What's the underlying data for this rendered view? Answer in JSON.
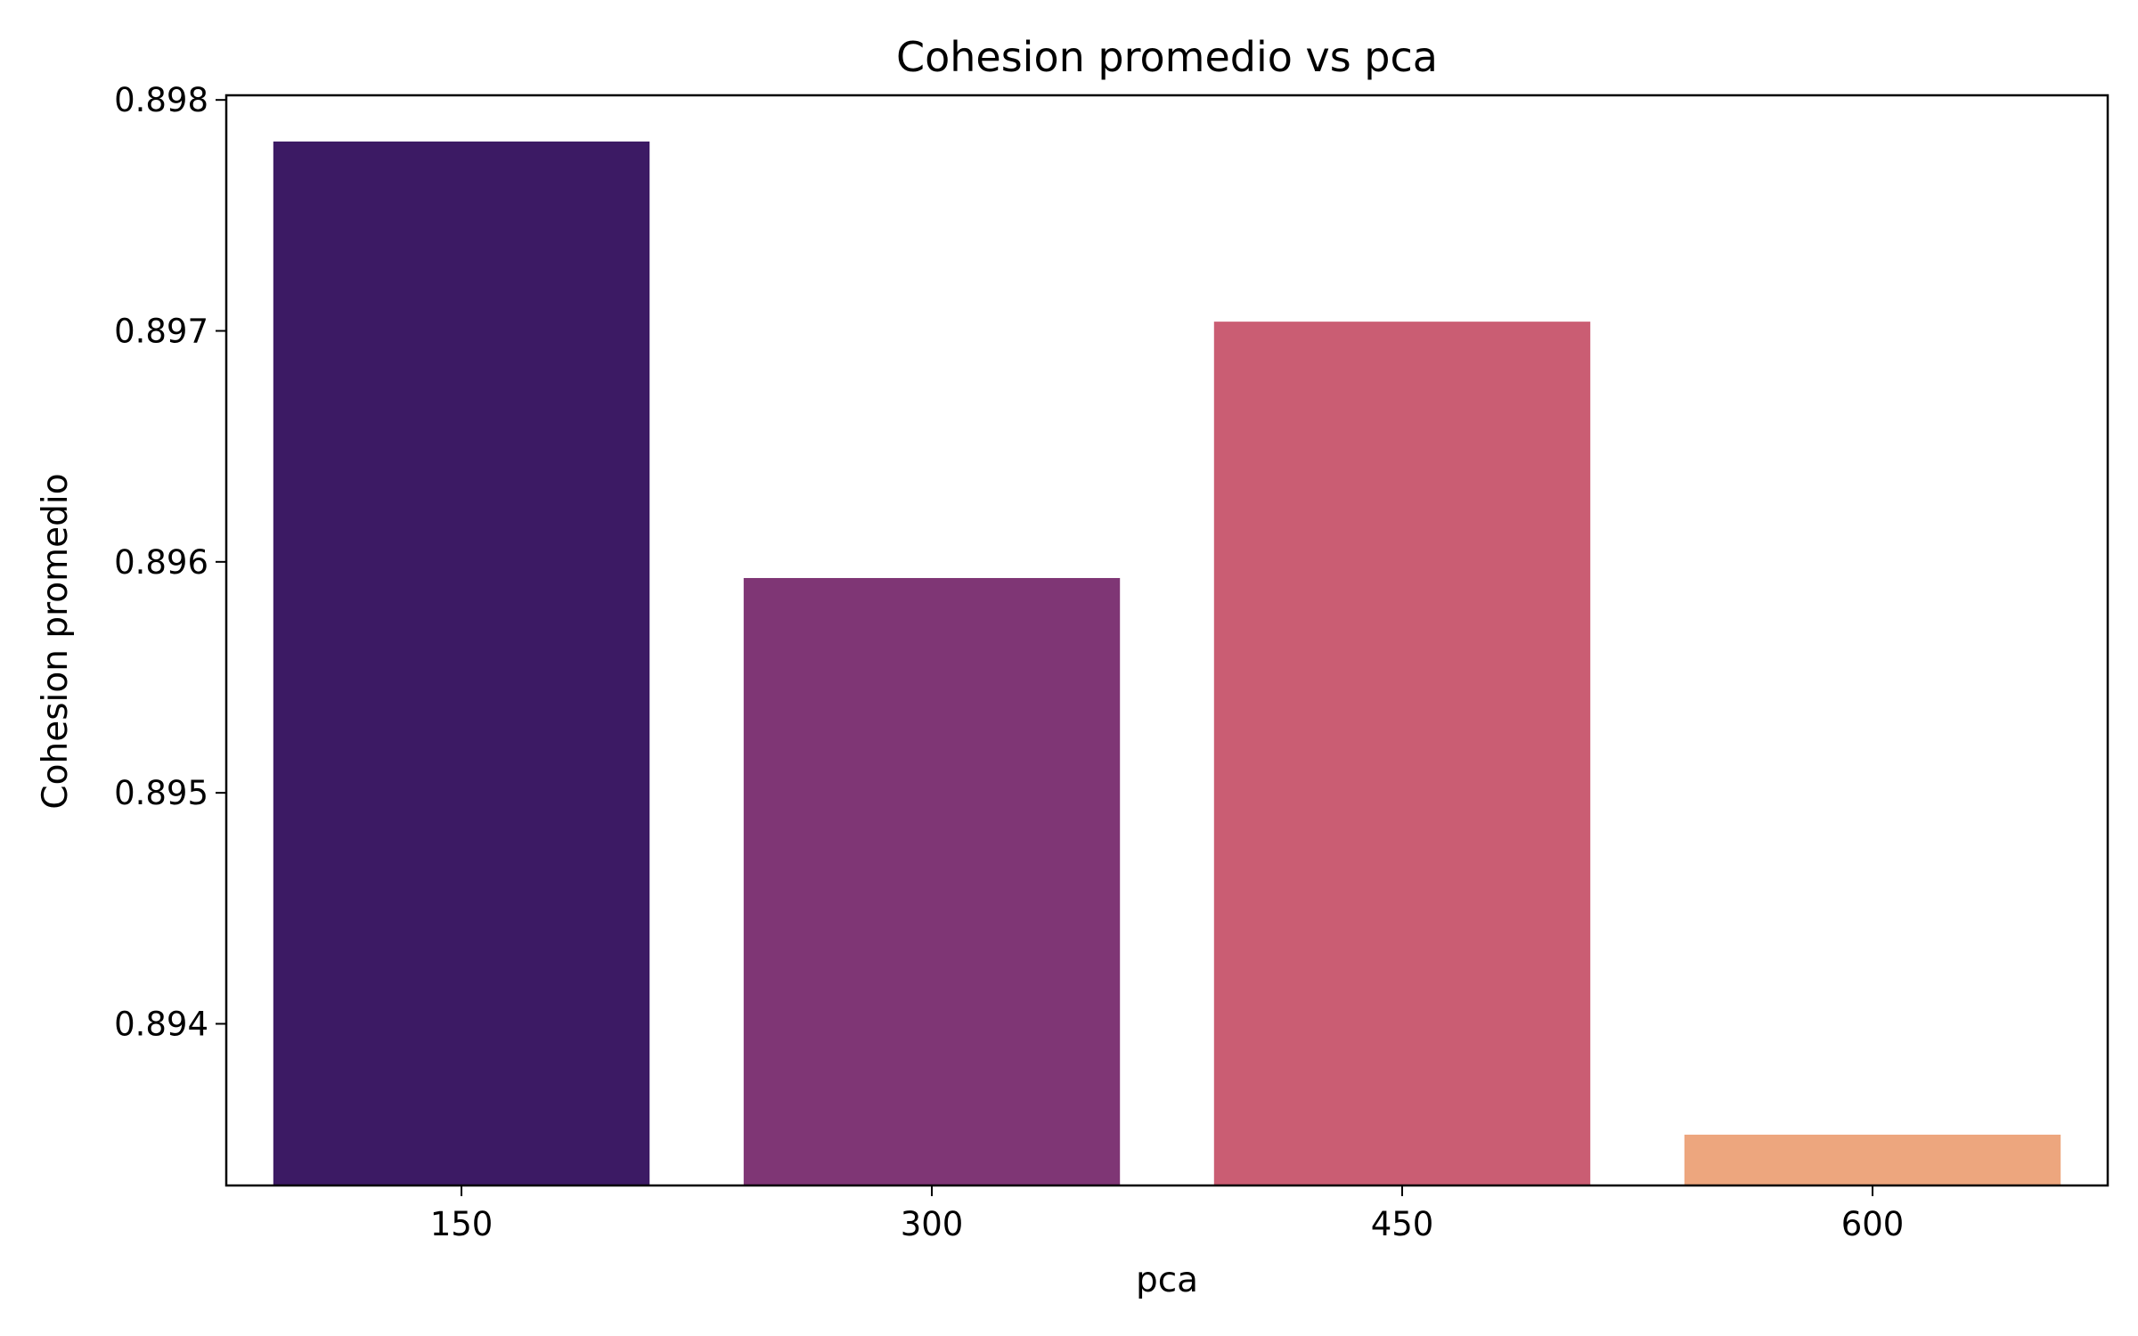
{
  "chart_data": {
    "type": "bar",
    "title": "Cohesion promedio vs pca",
    "xlabel": "pca",
    "ylabel": "Cohesion promedio",
    "categories": [
      "150",
      "300",
      "450",
      "600"
    ],
    "values": [
      0.89782,
      0.89593,
      0.89704,
      0.89352
    ],
    "ylim": [
      0.8933,
      0.89802
    ],
    "yticks": [
      0.894,
      0.895,
      0.896,
      0.897,
      0.898
    ],
    "ytick_labels": [
      "0.894",
      "0.895",
      "0.896",
      "0.897",
      "0.898"
    ],
    "colors": [
      "#3c1a64",
      "#7f3675",
      "#ca5d73",
      "#eda67e"
    ],
    "grid": false,
    "legend": "none"
  }
}
